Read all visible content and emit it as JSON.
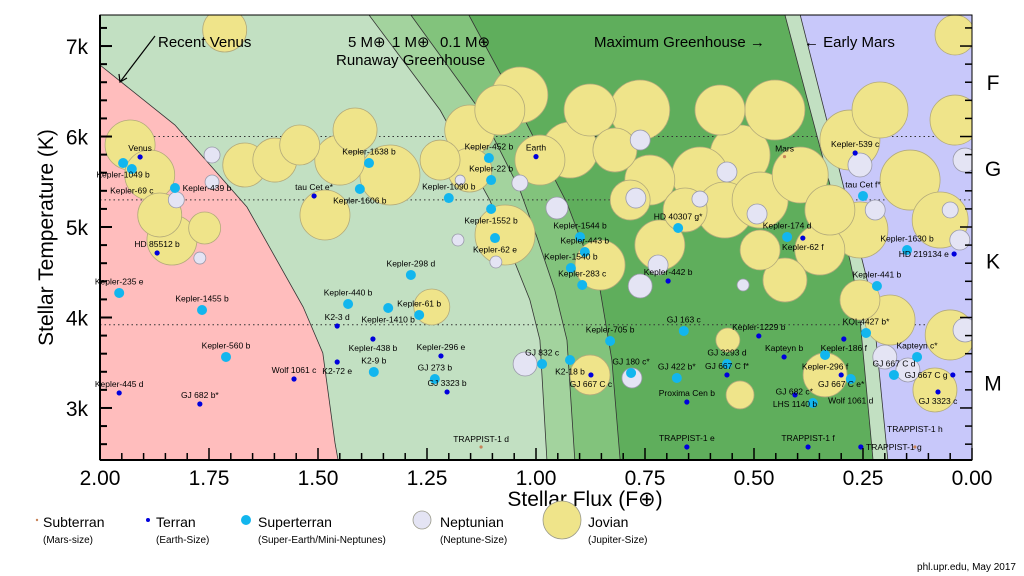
{
  "chart_data": {
    "type": "scatter",
    "title": "",
    "xlabel": "Stellar Flux (F⊕)",
    "ylabel": "Stellar Temperature (K)",
    "xlim": [
      2.0,
      0.0
    ],
    "ylim": [
      2425,
      7343
    ],
    "x_ticks": [
      "2.00",
      "1.75",
      "1.50",
      "1.25",
      "1.00",
      "0.75",
      "0.50",
      "0.25",
      "0.00"
    ],
    "x_tick_values": [
      2.0,
      1.75,
      1.5,
      1.25,
      1.0,
      0.75,
      0.5,
      0.25,
      0.0
    ],
    "y_ticks": [
      "7k",
      "6k",
      "5k",
      "4k",
      "3k"
    ],
    "y_tick_values": [
      7000,
      6000,
      5000,
      4000,
      3000
    ],
    "spectral_classes": [
      {
        "label": "F",
        "temp": 6600
      },
      {
        "label": "G",
        "temp": 5650
      },
      {
        "label": "K",
        "temp": 4630
      },
      {
        "label": "M",
        "temp": 3280
      }
    ],
    "spectral_boundaries": [
      6000,
      5300,
      3920
    ],
    "annotations": {
      "recent_venus": "Recent Venus",
      "mass_5": "5 M⊕",
      "mass_1": "1 M⊕",
      "mass_01": "0.1 M⊕",
      "runaway": "Runaway Greenhouse",
      "max_greenhouse": "Maximum Greenhouse →",
      "early_mars": "← Early Mars"
    },
    "zones": {
      "recent_venus": [
        [
          2.0,
          6790
        ],
        [
          1.828,
          6127
        ],
        [
          1.663,
          5221
        ],
        [
          1.534,
          4116
        ],
        [
          1.489,
          3608
        ],
        [
          1.461,
          2613
        ],
        [
          1.454,
          2425
        ]
      ],
      "runaway_5": [
        [
          1.383,
          7343
        ],
        [
          1.22,
          6293
        ],
        [
          1.106,
          5298
        ],
        [
          1.06,
          4746
        ],
        [
          1.014,
          4193
        ],
        [
          0.991,
          3751
        ],
        [
          0.975,
          2425
        ]
      ],
      "runaway_1": [
        [
          1.287,
          7343
        ],
        [
          1.129,
          6293
        ],
        [
          1.037,
          5409
        ],
        [
          0.998,
          4889
        ],
        [
          0.957,
          4304
        ],
        [
          0.929,
          3751
        ],
        [
          0.911,
          2425
        ]
      ],
      "runaway_01": [
        [
          1.154,
          7343
        ],
        [
          1.037,
          6293
        ],
        [
          0.968,
          5630
        ],
        [
          0.929,
          5265
        ],
        [
          0.888,
          4746
        ],
        [
          0.853,
          4304
        ],
        [
          0.826,
          3530
        ],
        [
          0.807,
          2425
        ]
      ],
      "max_greenhouse": [
        [
          0.429,
          7343
        ],
        [
          0.28,
          4635
        ],
        [
          0.261,
          4193
        ],
        [
          0.227,
          2425
        ]
      ],
      "early_mars": [
        [
          0.394,
          7343
        ],
        [
          0.252,
          4635
        ],
        [
          0.229,
          4193
        ],
        [
          0.193,
          2425
        ]
      ]
    },
    "zone_colors": {
      "hot": "#ffbdbd",
      "optimistic": "#c2e0c2",
      "band1": "#a3d39e",
      "band2": "#82c37c",
      "conservative": "#5fae5c",
      "edge": "#c2e0c2",
      "cold": "#c8c8fa"
    },
    "type_colors": {
      "subterran": "#c8845a",
      "terran": "#0000dd",
      "superterran": "#12b6ee",
      "neptunian": "#e4e4f4",
      "jovian": "#efe48a"
    },
    "labeled_planets": [
      {
        "name": "Venus",
        "type": "terran",
        "flux": 1.908,
        "temp": 5774
      },
      {
        "name": "Kepler-1049 b",
        "type": "superterran",
        "flux": 1.947,
        "temp": 5707
      },
      {
        "name": "Kepler-69 c",
        "type": "superterran",
        "flux": 1.927,
        "temp": 5641
      },
      {
        "name": "Kepler-439 b",
        "type": "superterran",
        "flux": 1.828,
        "temp": 5431
      },
      {
        "name": "HD 85512 b",
        "type": "terran",
        "flux": 1.869,
        "temp": 4713
      },
      {
        "name": "Kepler-235 e",
        "type": "superterran",
        "flux": 1.956,
        "temp": 4271
      },
      {
        "name": "Kepler-1455 b",
        "type": "superterran",
        "flux": 1.766,
        "temp": 4083
      },
      {
        "name": "Kepler-560 b",
        "type": "superterran",
        "flux": 1.711,
        "temp": 3564
      },
      {
        "name": "Wolf 1061 c",
        "type": "terran",
        "flux": 1.555,
        "temp": 3320
      },
      {
        "name": "Kepler-445 d",
        "type": "terran",
        "flux": 1.956,
        "temp": 3166
      },
      {
        "name": "GJ 682 b*",
        "type": "terran",
        "flux": 1.771,
        "temp": 3044
      },
      {
        "name": "tau Cet e*",
        "type": "terran",
        "flux": 1.509,
        "temp": 5343
      },
      {
        "name": "Kepler-1638 b",
        "type": "superterran",
        "flux": 1.383,
        "temp": 5707
      },
      {
        "name": "Kepler-1606 b",
        "type": "superterran",
        "flux": 1.404,
        "temp": 5420
      },
      {
        "name": "Kepler-298 d",
        "type": "superterran",
        "flux": 1.287,
        "temp": 4470
      },
      {
        "name": "Kepler-440 b",
        "type": "superterran",
        "flux": 1.431,
        "temp": 4149
      },
      {
        "name": "Kepler-1410 b",
        "type": "superterran",
        "flux": 1.339,
        "temp": 4105
      },
      {
        "name": "Kepler-61 b",
        "type": "superterran",
        "flux": 1.268,
        "temp": 4028
      },
      {
        "name": "K2-3 d",
        "type": "terran",
        "flux": 1.456,
        "temp": 3906
      },
      {
        "name": "Kepler-438 b",
        "type": "terran",
        "flux": 1.374,
        "temp": 3762
      },
      {
        "name": "K2-72 e",
        "type": "terran",
        "flux": 1.456,
        "temp": 3508
      },
      {
        "name": "K2-9 b",
        "type": "superterran",
        "flux": 1.372,
        "temp": 3398
      },
      {
        "name": "Kepler-452 b",
        "type": "superterran",
        "flux": 1.108,
        "temp": 5762
      },
      {
        "name": "Earth",
        "type": "terran",
        "flux": 1.0,
        "temp": 5778
      },
      {
        "name": "Kepler-22 b",
        "type": "superterran",
        "flux": 1.103,
        "temp": 5519
      },
      {
        "name": "Kepler-1090 b",
        "type": "superterran",
        "flux": 1.2,
        "temp": 5320
      },
      {
        "name": "Kepler-1552 b",
        "type": "superterran",
        "flux": 1.103,
        "temp": 5199
      },
      {
        "name": "Kepler-62 e",
        "type": "superterran",
        "flux": 1.094,
        "temp": 4878
      },
      {
        "name": "Kepler-1544 b",
        "type": "superterran",
        "flux": 0.899,
        "temp": 4890
      },
      {
        "name": "Kepler-443 b",
        "type": "superterran",
        "flux": 0.888,
        "temp": 4724
      },
      {
        "name": "Kepler-1540 b",
        "type": "superterran",
        "flux": 0.92,
        "temp": 4547
      },
      {
        "name": "Kepler-283 c",
        "type": "superterran",
        "flux": 0.894,
        "temp": 4359
      },
      {
        "name": "Kepler-442 b",
        "type": "terran",
        "flux": 0.697,
        "temp": 4403
      },
      {
        "name": "HD 40307 g*",
        "type": "superterran",
        "flux": 0.674,
        "temp": 4989
      },
      {
        "name": "GJ 163 c",
        "type": "superterran",
        "flux": 0.661,
        "temp": 3851
      },
      {
        "name": "Kepler-705 b",
        "type": "superterran",
        "flux": 0.83,
        "temp": 3740
      },
      {
        "name": "Kepler-296 e",
        "type": "terran",
        "flux": 1.218,
        "temp": 3575
      },
      {
        "name": "GJ 273 b",
        "type": "superterran",
        "flux": 1.232,
        "temp": 3320
      },
      {
        "name": "GJ 3323 b",
        "type": "terran",
        "flux": 1.204,
        "temp": 3177
      },
      {
        "name": "GJ 832 c",
        "type": "superterran",
        "flux": 0.986,
        "temp": 3486
      },
      {
        "name": "K2-18 b",
        "type": "superterran",
        "flux": 0.922,
        "temp": 3530
      },
      {
        "name": "GJ 667 C c",
        "type": "terran",
        "flux": 0.874,
        "temp": 3365
      },
      {
        "name": "GJ 180 c*",
        "type": "superterran",
        "flux": 0.782,
        "temp": 3387
      },
      {
        "name": "GJ 422 b*",
        "type": "superterran",
        "flux": 0.677,
        "temp": 3331
      },
      {
        "name": "Proxima Cen b",
        "type": "terran",
        "flux": 0.654,
        "temp": 3066
      },
      {
        "name": "TRAPPIST-1 d",
        "type": "subterran",
        "flux": 1.126,
        "temp": 2569
      },
      {
        "name": "TRAPPIST-1 e",
        "type": "terran",
        "flux": 0.654,
        "temp": 2569
      },
      {
        "name": "Mars",
        "type": "subterran",
        "flux": 0.43,
        "temp": 5778
      },
      {
        "name": "Kepler-539 c",
        "type": "terran",
        "flux": 0.268,
        "temp": 5818
      },
      {
        "name": "tau Cet f*",
        "type": "superterran",
        "flux": 0.25,
        "temp": 5343
      },
      {
        "name": "Kepler-174 d",
        "type": "superterran",
        "flux": 0.424,
        "temp": 4890
      },
      {
        "name": "Kepler-62 f",
        "type": "terran",
        "flux": 0.388,
        "temp": 4878
      },
      {
        "name": "Kepler-1630 b",
        "type": "superterran",
        "flux": 0.149,
        "temp": 4746
      },
      {
        "name": "HD 219134 e",
        "type": "terran",
        "flux": 0.041,
        "temp": 4702
      },
      {
        "name": "Kepler-441 b",
        "type": "superterran",
        "flux": 0.218,
        "temp": 4348
      },
      {
        "name": "KOI-4427 b*",
        "type": "superterran",
        "flux": 0.243,
        "temp": 3829
      },
      {
        "name": "Kepler-186 f",
        "type": "terran",
        "flux": 0.294,
        "temp": 3762
      },
      {
        "name": "Kepler-1229 b",
        "type": "terran",
        "flux": 0.489,
        "temp": 3796
      },
      {
        "name": "Kapteyn b",
        "type": "terran",
        "flux": 0.431,
        "temp": 3564
      },
      {
        "name": "Kepler-296 f",
        "type": "superterran",
        "flux": 0.337,
        "temp": 3586
      },
      {
        "name": "GJ 3293 d",
        "type": "superterran",
        "flux": 0.562,
        "temp": 3486
      },
      {
        "name": "GJ 667 C f*",
        "type": "terran",
        "flux": 0.562,
        "temp": 3365
      },
      {
        "name": "Kapteyn c*",
        "type": "superterran",
        "flux": 0.126,
        "temp": 3564
      },
      {
        "name": "GJ 667 C e*",
        "type": "terran",
        "flux": 0.3,
        "temp": 3365
      },
      {
        "name": "Wolf 1061 d",
        "type": "superterran",
        "flux": 0.278,
        "temp": 3320
      },
      {
        "name": "GJ 667 C d",
        "type": "superterran",
        "flux": 0.179,
        "temp": 3365
      },
      {
        "name": "GJ 667 C g",
        "type": "terran",
        "flux": 0.044,
        "temp": 3365
      },
      {
        "name": "GJ 3323 c",
        "type": "terran",
        "flux": 0.078,
        "temp": 3177
      },
      {
        "name": "LHS 1140 b",
        "type": "terran",
        "flux": 0.406,
        "temp": 3144
      },
      {
        "name": "GJ 682 c*",
        "type": "superterran",
        "flux": 0.365,
        "temp": 3055
      },
      {
        "name": "TRAPPIST-1 f",
        "type": "terran",
        "flux": 0.376,
        "temp": 2569
      },
      {
        "name": "TRAPPIST-1 g",
        "type": "terran",
        "flux": 0.255,
        "temp": 2569
      },
      {
        "name": "TRAPPIST-1 h",
        "type": "subterran",
        "flux": 0.131,
        "temp": 2569
      }
    ],
    "unlabeled_jovians": [
      [
        1.714,
        7177,
        11
      ],
      [
        1.931,
        5906,
        12.5
      ],
      [
        1.886,
        5575,
        12.5
      ],
      [
        1.863,
        5133,
        11
      ],
      [
        1.835,
        4856,
        12.5
      ],
      [
        1.76,
        4989,
        8
      ],
      [
        1.668,
        5685,
        11
      ],
      [
        1.599,
        5740,
        11
      ],
      [
        1.542,
        5906,
        10
      ],
      [
        1.45,
        5740,
        12.5
      ],
      [
        1.415,
        6072,
        11
      ],
      [
        1.335,
        5575,
        15
      ],
      [
        1.484,
        5133,
        12.5
      ],
      [
        1.22,
        5740,
        10
      ],
      [
        1.152,
        6072,
        12.5
      ],
      [
        1.083,
        6293,
        12.5
      ],
      [
        1.037,
        6459,
        14
      ],
      [
        1.071,
        4912,
        15
      ],
      [
        0.991,
        5740,
        12.5
      ],
      [
        0.922,
        5851,
        14
      ],
      [
        0.876,
        6293,
        13
      ],
      [
        0.762,
        6293,
        15
      ],
      [
        0.739,
        5519,
        12.5
      ],
      [
        0.784,
        5298,
        10
      ],
      [
        0.716,
        4801,
        12.5
      ],
      [
        0.624,
        5575,
        14
      ],
      [
        0.578,
        6293,
        12.5
      ],
      [
        0.567,
        5188,
        14
      ],
      [
        0.532,
        5796,
        15
      ],
      [
        0.486,
        5298,
        14
      ],
      [
        0.452,
        6293,
        15
      ],
      [
        0.394,
        5575,
        14
      ],
      [
        0.349,
        4746,
        12.5
      ],
      [
        0.28,
        5961,
        15
      ],
      [
        0.211,
        6293,
        14
      ],
      [
        0.142,
        5519,
        15
      ],
      [
        0.073,
        5077,
        14
      ],
      [
        0.039,
        6182,
        12.5
      ],
      [
        0.039,
        7122,
        10
      ],
      [
        0.257,
        4193,
        10
      ],
      [
        0.188,
        3972,
        12.5
      ],
      [
        0.05,
        3807,
        12.5
      ],
      [
        0.085,
        3199,
        11
      ],
      [
        0.337,
        3365,
        11
      ],
      [
        0.486,
        4746,
        10
      ],
      [
        0.853,
        4580,
        12.5
      ],
      [
        0.257,
        4967,
        14
      ],
      [
        0.429,
        4414,
        11
      ],
      [
        0.532,
        3144,
        7
      ],
      [
        0.56,
        3751,
        6
      ],
      [
        1.239,
        4116,
        9
      ],
      [
        0.876,
        3365,
        10
      ],
      [
        0.326,
        5188,
        12.5
      ],
      [
        0.658,
        5188,
        11
      ],
      [
        1.152,
        5630,
        11
      ],
      [
        0.819,
        5851,
        11
      ]
    ],
    "unlabeled_neptunians": [
      [
        1.743,
        5796,
        4
      ],
      [
        1.743,
        5497,
        3.5
      ],
      [
        1.771,
        4657,
        3
      ],
      [
        1.179,
        4856,
        3
      ],
      [
        1.174,
        5519,
        2.5
      ],
      [
        1.092,
        4613,
        3
      ],
      [
        1.037,
        5486,
        4
      ],
      [
        0.952,
        5210,
        5.5
      ],
      [
        1.025,
        3486,
        6
      ],
      [
        0.78,
        3331,
        5
      ],
      [
        0.771,
        5320,
        5
      ],
      [
        0.72,
        4580,
        5
      ],
      [
        0.624,
        5309,
        4
      ],
      [
        0.562,
        5608,
        5
      ],
      [
        0.493,
        5144,
        5
      ],
      [
        0.761,
        4348,
        6
      ],
      [
        0.525,
        4359,
        3
      ],
      [
        0.257,
        5685,
        6
      ],
      [
        0.222,
        5188,
        5
      ],
      [
        0.016,
        5740,
        6
      ],
      [
        0.05,
        5188,
        4
      ],
      [
        0.028,
        4856,
        5
      ],
      [
        0.016,
        3862,
        6
      ],
      [
        0.2,
        3563,
        6
      ],
      [
        0.147,
        3420,
        6
      ],
      [
        0.761,
        5961,
        5
      ],
      [
        1.825,
        5300,
        4
      ]
    ],
    "legend": [
      {
        "type": "subterran",
        "label": "Subterran",
        "sub": "(Mars-size)"
      },
      {
        "type": "terran",
        "label": "Terran",
        "sub": "(Earth-Size)"
      },
      {
        "type": "superterran",
        "label": "Superterran",
        "sub": "(Super-Earth/Mini-Neptunes)"
      },
      {
        "type": "neptunian",
        "label": "Neptunian",
        "sub": "(Neptune-Size)"
      },
      {
        "type": "jovian",
        "label": "Jovian",
        "sub": "(Jupiter-Size)"
      }
    ],
    "credit": "phl.upr.edu, May 2017"
  }
}
